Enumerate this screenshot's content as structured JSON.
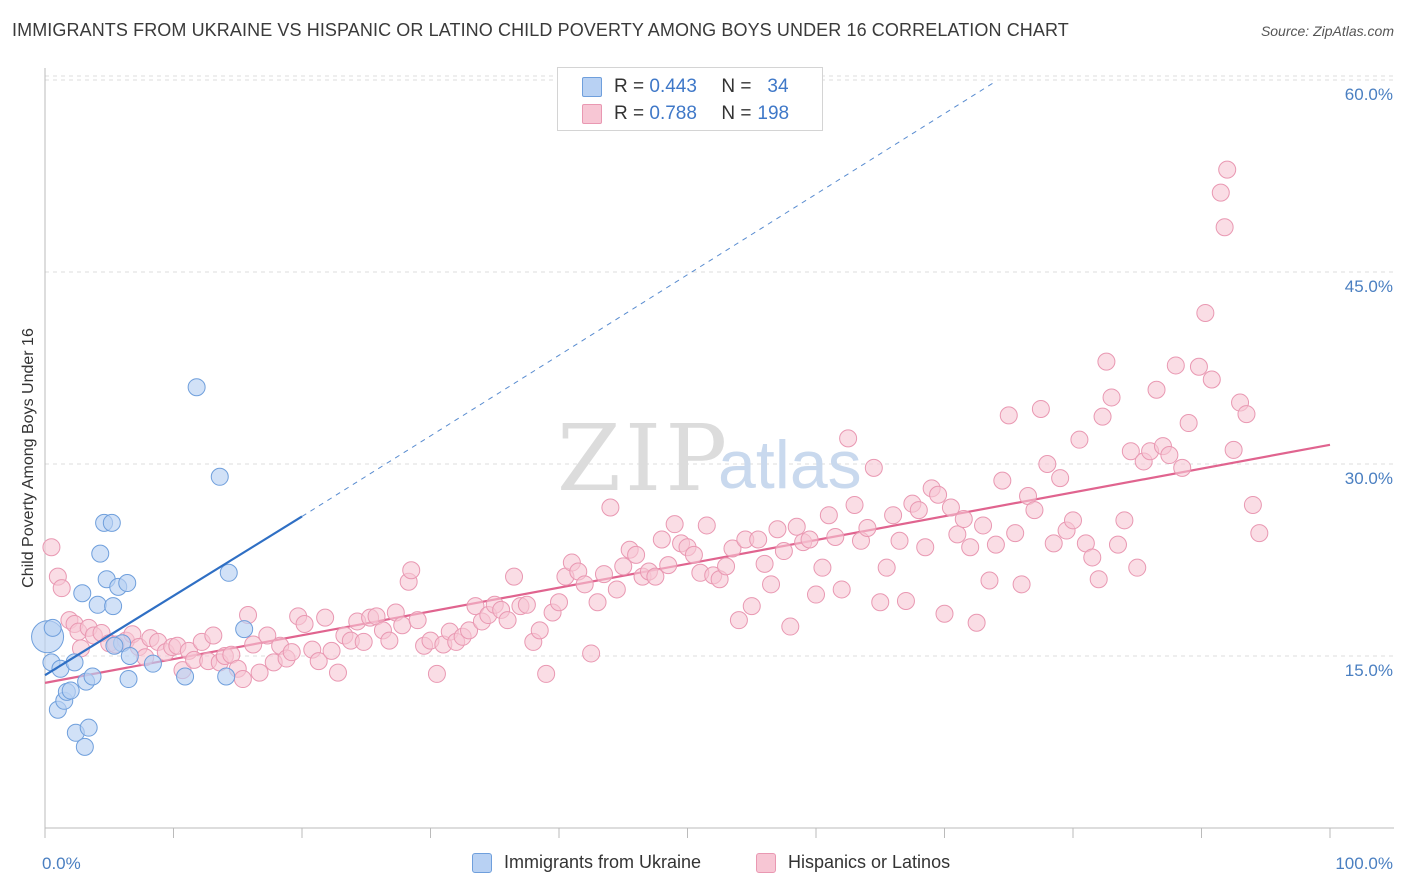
{
  "header": {
    "title": "IMMIGRANTS FROM UKRAINE VS HISPANIC OR LATINO CHILD POVERTY AMONG BOYS UNDER 16 CORRELATION CHART",
    "source": "Source: ZipAtlas.com"
  },
  "watermark": {
    "zip": "ZIP",
    "atlas": "atlas"
  },
  "legend": {
    "rows": [
      {
        "r_label": "R =",
        "r_value": "0.443",
        "n_label": "N =",
        "n_value": "34"
      },
      {
        "r_label": "R =",
        "r_value": "0.788",
        "n_label": "N =",
        "n_value": "198"
      }
    ]
  },
  "bottom_legend": {
    "series1": "Immigrants from Ukraine",
    "series2": "Hispanics or Latinos"
  },
  "colors": {
    "ukraine_fill": "#b8d1f3",
    "ukraine_stroke": "#6f9fdc",
    "ukraine_line": "#2f6fc4",
    "hispanic_fill": "#f7c6d4",
    "hispanic_stroke": "#e998b2",
    "hispanic_line": "#e0648f",
    "tick_text": "#4a7fc1",
    "grid": "#dddddd"
  },
  "chart_data": {
    "type": "scatter",
    "title": "IMMIGRANTS FROM UKRAINE VS HISPANIC OR LATINO CHILD POVERTY AMONG BOYS UNDER 16 CORRELATION CHART",
    "xlabel": "",
    "ylabel": "Child Poverty Among Boys Under 16",
    "xlim": [
      0,
      100
    ],
    "ylim": [
      0,
      65
    ],
    "x_tick_labels": [
      {
        "value": 0,
        "label": "0.0%"
      },
      {
        "value": 100,
        "label": "100.0%"
      }
    ],
    "y_tick_labels": [
      {
        "value": 15,
        "label": "15.0%"
      },
      {
        "value": 30,
        "label": "30.0%"
      },
      {
        "value": 45,
        "label": "45.0%"
      },
      {
        "value": 60,
        "label": "60.0%"
      }
    ],
    "grid": true,
    "legend_position": "top-center",
    "series": [
      {
        "name": "Immigrants from Ukraine",
        "points": [
          [
            0.2,
            16.5
          ],
          [
            0.5,
            14.5
          ],
          [
            0.6,
            17.2
          ],
          [
            1.0,
            10.8
          ],
          [
            1.2,
            14.0
          ],
          [
            1.5,
            11.5
          ],
          [
            1.7,
            12.2
          ],
          [
            2.0,
            12.3
          ],
          [
            2.3,
            14.5
          ],
          [
            2.4,
            9.0
          ],
          [
            2.9,
            19.9
          ],
          [
            3.1,
            7.9
          ],
          [
            3.2,
            13.0
          ],
          [
            3.4,
            9.4
          ],
          [
            3.7,
            13.4
          ],
          [
            4.1,
            19.0
          ],
          [
            4.3,
            23.0
          ],
          [
            4.6,
            25.4
          ],
          [
            4.8,
            21.0
          ],
          [
            5.2,
            25.4
          ],
          [
            5.3,
            18.9
          ],
          [
            5.7,
            20.4
          ],
          [
            6.0,
            16.0
          ],
          [
            6.4,
            20.7
          ],
          [
            6.5,
            13.2
          ],
          [
            6.6,
            15.0
          ],
          [
            8.4,
            14.4
          ],
          [
            10.9,
            13.4
          ],
          [
            11.8,
            36.0
          ],
          [
            13.6,
            29.0
          ],
          [
            14.1,
            13.4
          ],
          [
            14.3,
            21.5
          ],
          [
            15.5,
            17.1
          ],
          [
            5.4,
            15.8
          ]
        ],
        "trend": {
          "x1": 0,
          "y1": 13.5,
          "x2": 20,
          "y2": 25.9,
          "dashed_to_x": 74,
          "dashed_to_y": 59.9
        }
      },
      {
        "name": "Hispanics or Latinos",
        "points": [
          [
            0.5,
            23.5
          ],
          [
            1.0,
            21.2
          ],
          [
            1.3,
            20.3
          ],
          [
            1.9,
            17.8
          ],
          [
            2.3,
            17.5
          ],
          [
            2.6,
            16.9
          ],
          [
            2.8,
            15.6
          ],
          [
            3.4,
            17.2
          ],
          [
            3.8,
            16.6
          ],
          [
            4.4,
            16.8
          ],
          [
            5.0,
            16.0
          ],
          [
            5.5,
            15.9
          ],
          [
            6.3,
            16.2
          ],
          [
            6.8,
            16.7
          ],
          [
            7.3,
            15.7
          ],
          [
            7.8,
            14.9
          ],
          [
            8.2,
            16.4
          ],
          [
            8.8,
            16.1
          ],
          [
            9.4,
            15.3
          ],
          [
            9.9,
            15.7
          ],
          [
            10.3,
            15.8
          ],
          [
            10.7,
            13.9
          ],
          [
            11.2,
            15.4
          ],
          [
            11.6,
            14.7
          ],
          [
            12.2,
            16.1
          ],
          [
            12.7,
            14.6
          ],
          [
            13.1,
            16.6
          ],
          [
            13.6,
            14.5
          ],
          [
            14.0,
            15.0
          ],
          [
            14.5,
            15.1
          ],
          [
            15.0,
            14.0
          ],
          [
            15.4,
            13.2
          ],
          [
            15.8,
            18.2
          ],
          [
            16.2,
            15.9
          ],
          [
            16.7,
            13.7
          ],
          [
            17.3,
            16.6
          ],
          [
            17.8,
            14.5
          ],
          [
            18.3,
            15.8
          ],
          [
            18.8,
            14.8
          ],
          [
            19.2,
            15.3
          ],
          [
            19.7,
            18.1
          ],
          [
            20.2,
            17.5
          ],
          [
            20.8,
            15.5
          ],
          [
            21.3,
            14.6
          ],
          [
            21.8,
            18.0
          ],
          [
            22.3,
            15.4
          ],
          [
            22.8,
            13.7
          ],
          [
            23.3,
            16.6
          ],
          [
            23.8,
            16.2
          ],
          [
            24.3,
            17.7
          ],
          [
            24.8,
            16.1
          ],
          [
            25.3,
            18.0
          ],
          [
            25.8,
            18.1
          ],
          [
            26.3,
            17.0
          ],
          [
            26.8,
            16.2
          ],
          [
            27.3,
            18.4
          ],
          [
            27.8,
            17.4
          ],
          [
            28.3,
            20.8
          ],
          [
            28.5,
            21.7
          ],
          [
            29.0,
            17.8
          ],
          [
            29.5,
            15.8
          ],
          [
            30.0,
            16.2
          ],
          [
            30.5,
            13.6
          ],
          [
            31.0,
            15.9
          ],
          [
            31.5,
            16.9
          ],
          [
            32.0,
            16.1
          ],
          [
            32.5,
            16.5
          ],
          [
            33.0,
            17.0
          ],
          [
            33.5,
            18.9
          ],
          [
            34.0,
            17.7
          ],
          [
            34.5,
            18.2
          ],
          [
            35.0,
            19.0
          ],
          [
            35.5,
            18.6
          ],
          [
            36.0,
            17.8
          ],
          [
            36.5,
            21.2
          ],
          [
            37.0,
            18.9
          ],
          [
            37.5,
            19.0
          ],
          [
            38.0,
            16.1
          ],
          [
            38.5,
            17.0
          ],
          [
            39.0,
            13.6
          ],
          [
            39.5,
            18.4
          ],
          [
            40.0,
            19.2
          ],
          [
            40.5,
            21.2
          ],
          [
            41.0,
            22.3
          ],
          [
            41.5,
            21.6
          ],
          [
            42.0,
            20.6
          ],
          [
            42.5,
            15.2
          ],
          [
            43.0,
            19.2
          ],
          [
            43.5,
            21.4
          ],
          [
            44.0,
            26.6
          ],
          [
            44.5,
            20.2
          ],
          [
            45.0,
            22.0
          ],
          [
            45.5,
            23.3
          ],
          [
            46.0,
            22.9
          ],
          [
            46.5,
            21.2
          ],
          [
            47.0,
            21.6
          ],
          [
            47.5,
            21.2
          ],
          [
            48.0,
            24.1
          ],
          [
            48.5,
            22.1
          ],
          [
            49.0,
            25.3
          ],
          [
            49.5,
            23.8
          ],
          [
            50.0,
            23.5
          ],
          [
            50.5,
            22.9
          ],
          [
            51.0,
            21.5
          ],
          [
            51.5,
            25.2
          ],
          [
            52.0,
            21.3
          ],
          [
            52.5,
            21.0
          ],
          [
            53.0,
            22.0
          ],
          [
            53.5,
            23.4
          ],
          [
            54.0,
            17.8
          ],
          [
            54.5,
            24.1
          ],
          [
            55.0,
            18.9
          ],
          [
            55.5,
            24.1
          ],
          [
            56.0,
            22.2
          ],
          [
            56.5,
            20.6
          ],
          [
            57.0,
            24.9
          ],
          [
            57.5,
            23.2
          ],
          [
            58.0,
            17.3
          ],
          [
            58.5,
            25.1
          ],
          [
            59.0,
            23.9
          ],
          [
            59.5,
            24.1
          ],
          [
            60.0,
            19.8
          ],
          [
            60.5,
            21.9
          ],
          [
            61.0,
            26.0
          ],
          [
            61.5,
            24.3
          ],
          [
            62.0,
            20.2
          ],
          [
            62.5,
            32.0
          ],
          [
            63.0,
            26.8
          ],
          [
            63.5,
            24.0
          ],
          [
            64.0,
            25.0
          ],
          [
            64.5,
            29.7
          ],
          [
            65.0,
            19.2
          ],
          [
            65.5,
            21.9
          ],
          [
            66.0,
            26.0
          ],
          [
            66.5,
            24.0
          ],
          [
            67.0,
            19.3
          ],
          [
            67.5,
            26.9
          ],
          [
            68.0,
            26.4
          ],
          [
            68.5,
            23.5
          ],
          [
            69.0,
            28.1
          ],
          [
            69.5,
            27.6
          ],
          [
            70.0,
            18.3
          ],
          [
            70.5,
            26.6
          ],
          [
            71.0,
            24.5
          ],
          [
            71.5,
            25.7
          ],
          [
            72.0,
            23.5
          ],
          [
            72.5,
            17.6
          ],
          [
            73.0,
            25.2
          ],
          [
            73.5,
            20.9
          ],
          [
            74.0,
            23.7
          ],
          [
            74.5,
            28.7
          ],
          [
            75.0,
            33.8
          ],
          [
            75.5,
            24.6
          ],
          [
            76.0,
            20.6
          ],
          [
            76.5,
            27.5
          ],
          [
            77.0,
            26.4
          ],
          [
            77.5,
            34.3
          ],
          [
            78.0,
            30.0
          ],
          [
            78.5,
            23.8
          ],
          [
            79.0,
            28.9
          ],
          [
            79.5,
            24.8
          ],
          [
            80.0,
            25.6
          ],
          [
            80.5,
            31.9
          ],
          [
            81.0,
            23.8
          ],
          [
            81.5,
            22.7
          ],
          [
            82.0,
            21.0
          ],
          [
            82.3,
            33.7
          ],
          [
            82.6,
            38.0
          ],
          [
            83.0,
            35.2
          ],
          [
            83.5,
            23.7
          ],
          [
            84.0,
            25.6
          ],
          [
            84.5,
            31.0
          ],
          [
            85.0,
            21.9
          ],
          [
            85.5,
            30.2
          ],
          [
            86.0,
            31.0
          ],
          [
            86.5,
            35.8
          ],
          [
            87.0,
            31.4
          ],
          [
            87.5,
            30.7
          ],
          [
            88.0,
            37.7
          ],
          [
            88.5,
            29.7
          ],
          [
            89.0,
            33.2
          ],
          [
            89.8,
            37.6
          ],
          [
            90.3,
            41.8
          ],
          [
            90.8,
            36.6
          ],
          [
            91.8,
            48.5
          ],
          [
            91.5,
            51.2
          ],
          [
            92.0,
            53.0
          ],
          [
            93.0,
            34.8
          ],
          [
            93.5,
            33.9
          ],
          [
            94.0,
            26.8
          ],
          [
            92.5,
            31.1
          ],
          [
            94.5,
            24.6
          ]
        ],
        "trend": {
          "x1": 0,
          "y1": 12.9,
          "x2": 100,
          "y2": 31.5
        }
      }
    ]
  }
}
